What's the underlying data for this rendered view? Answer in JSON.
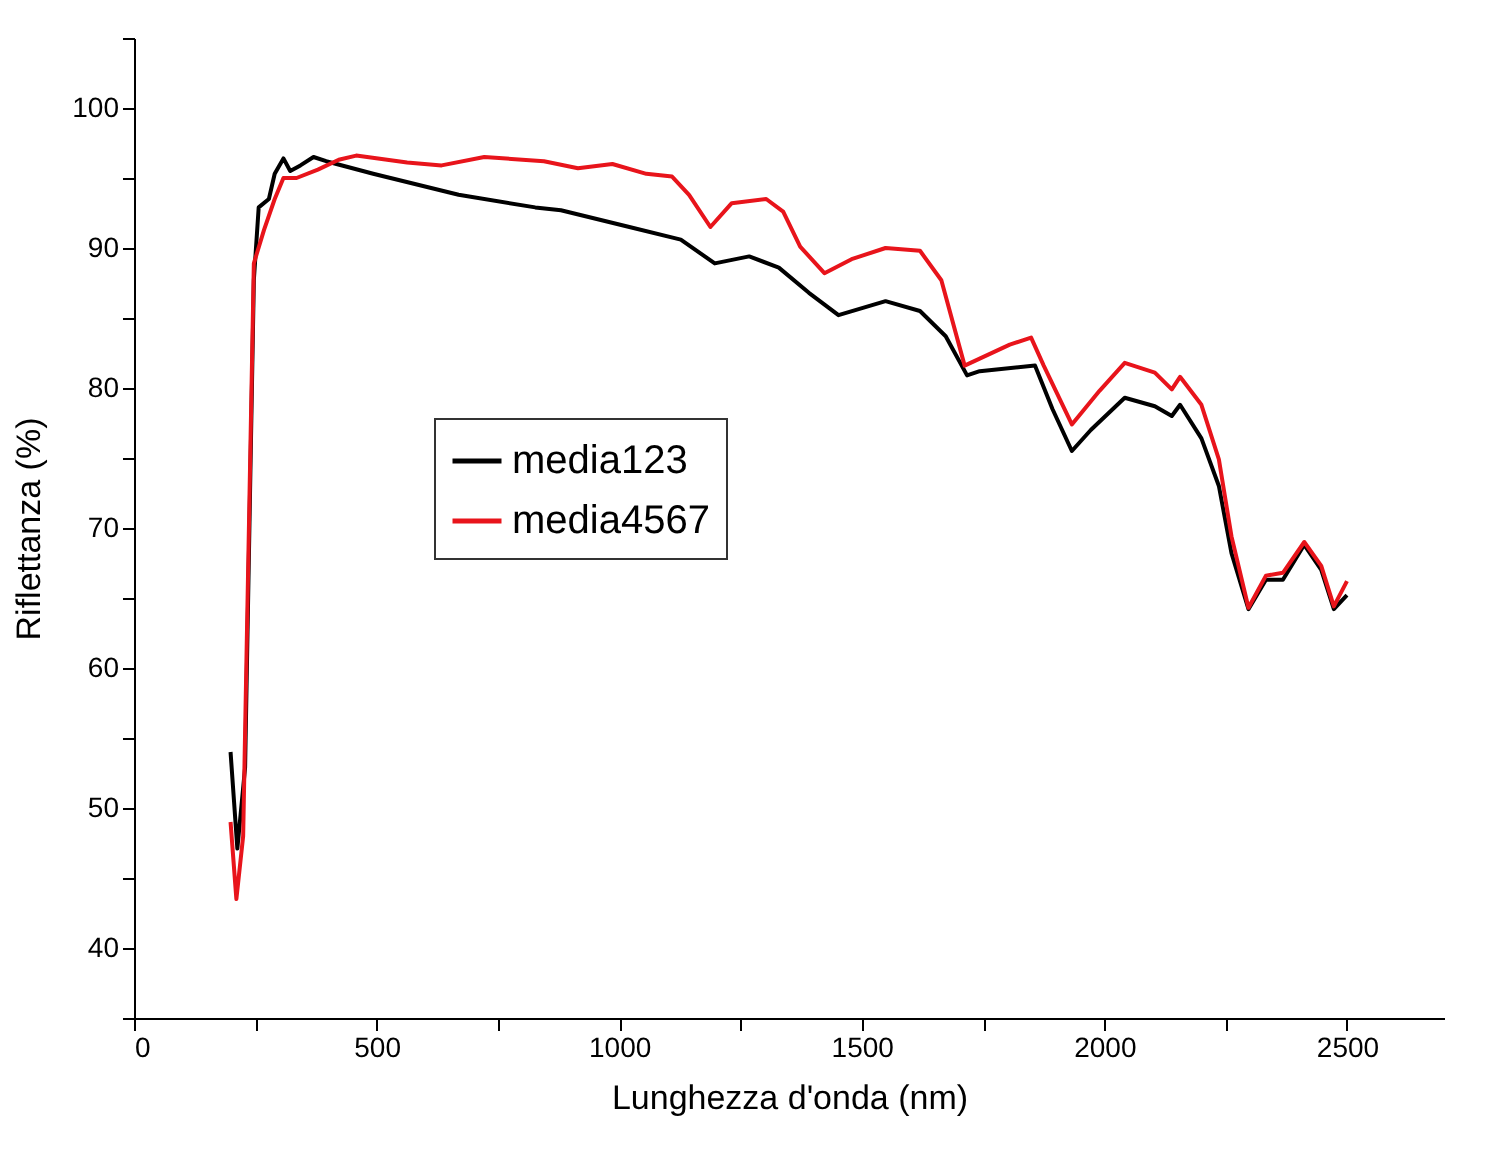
{
  "chart_data": {
    "type": "line",
    "xlabel": "Lunghezza d'onda (nm)",
    "ylabel": "Riflettanza (%)",
    "xlim": [
      0,
      2700
    ],
    "ylim": [
      35,
      105
    ],
    "xticks": [
      0,
      {
        "value": 250,
        "label": null
      },
      500,
      {
        "value": 750,
        "label": null
      },
      1000,
      {
        "value": 1250,
        "label": null
      },
      1500,
      {
        "value": 1750,
        "label": null
      },
      2000,
      {
        "value": 2250,
        "label": null
      },
      2500
    ],
    "yticks": [
      {
        "value": 35,
        "label": null
      },
      40,
      {
        "value": 45,
        "label": null
      },
      50,
      {
        "value": 55,
        "label": null
      },
      60,
      {
        "value": 65,
        "label": null
      },
      70,
      {
        "value": 75,
        "label": null
      },
      80,
      {
        "value": 85,
        "label": null
      },
      90,
      {
        "value": 95,
        "label": null
      },
      100,
      {
        "value": 105,
        "label": null
      }
    ],
    "grid": false,
    "legend": "left",
    "line_style": "solid",
    "marker": "none",
    "series": [
      {
        "name": "media123",
        "color": "#000000",
        "x": [
          199,
          213,
          229,
          247,
          257,
          278,
          290,
          308,
          322,
          343,
          370,
          396,
          493,
          669,
          827,
          880,
          1021,
          1127,
          1197,
          1268,
          1329,
          1391,
          1452,
          1549,
          1620,
          1673,
          1717,
          1743,
          1857,
          1893,
          1933,
          1972,
          2042,
          2104,
          2139,
          2156,
          2200,
          2236,
          2262,
          2297,
          2333,
          2368,
          2412,
          2447,
          2473,
          2500
        ],
        "values": [
          54.0,
          47.1,
          52.9,
          87.7,
          92.9,
          93.5,
          95.3,
          96.4,
          95.5,
          95.9,
          96.5,
          96.2,
          95.3,
          93.8,
          92.9,
          92.7,
          91.5,
          90.6,
          88.9,
          89.4,
          88.6,
          86.8,
          85.2,
          86.2,
          85.5,
          83.7,
          80.9,
          81.2,
          81.6,
          78.5,
          75.5,
          77.0,
          79.3,
          78.7,
          78.0,
          78.8,
          76.4,
          73.0,
          68.2,
          64.2,
          66.3,
          66.3,
          68.8,
          67.0,
          64.2,
          65.2
        ]
      },
      {
        "name": "media4567",
        "color": "#e8141b",
        "x": [
          199,
          211,
          225,
          247,
          268,
          290,
          308,
          335,
          379,
          422,
          458,
          563,
          634,
          722,
          845,
          915,
          986,
          1056,
          1109,
          1144,
          1188,
          1232,
          1303,
          1338,
          1373,
          1423,
          1479,
          1549,
          1620,
          1664,
          1712,
          1743,
          1805,
          1849,
          1875,
          1933,
          1990,
          2042,
          2104,
          2139,
          2156,
          2200,
          2236,
          2262,
          2297,
          2333,
          2368,
          2412,
          2447,
          2473,
          2500
        ],
        "values": [
          49.0,
          43.5,
          48.0,
          88.9,
          91.3,
          93.5,
          95.0,
          95.0,
          95.6,
          96.3,
          96.6,
          96.1,
          95.9,
          96.5,
          96.2,
          95.7,
          96.0,
          95.3,
          95.1,
          93.8,
          91.5,
          93.2,
          93.5,
          92.6,
          90.1,
          88.2,
          89.2,
          90.0,
          89.8,
          87.7,
          81.6,
          82.1,
          83.1,
          83.6,
          81.6,
          77.4,
          79.8,
          81.8,
          81.1,
          79.9,
          80.8,
          78.8,
          74.9,
          69.4,
          64.3,
          66.6,
          66.8,
          69.0,
          67.3,
          64.4,
          66.2
        ]
      }
    ]
  }
}
